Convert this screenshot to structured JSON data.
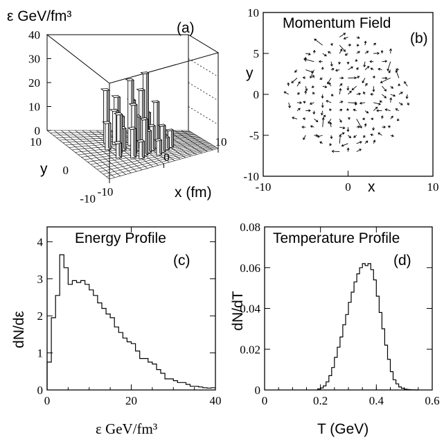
{
  "chart_data": [
    {
      "id": "a",
      "type": "bar3d",
      "panel_label": "(a)",
      "zlabel": "ε GeV/fm³",
      "xlabel": "x (fm)",
      "ylabel": "y",
      "z_ticks": [
        "0",
        "10",
        "20",
        "30",
        "40"
      ],
      "x_ticks": [
        "-10",
        "0",
        "10"
      ],
      "y_ticks": [
        "10",
        "0",
        "-10"
      ],
      "zlim": [
        0,
        40
      ],
      "xlim": [
        -10,
        10
      ],
      "ylim": [
        -10,
        10
      ],
      "bars": [
        {
          "x": -4,
          "y": 4,
          "z": 22
        },
        {
          "x": -3,
          "y": 3,
          "z": 14
        },
        {
          "x": -2,
          "y": 5,
          "z": 18
        },
        {
          "x": -1,
          "y": 2,
          "z": 27
        },
        {
          "x": 0,
          "y": 4,
          "z": 17
        },
        {
          "x": 1,
          "y": 1,
          "z": 30
        },
        {
          "x": 2,
          "y": 3,
          "z": 12
        },
        {
          "x": -5,
          "y": 1,
          "z": 11
        },
        {
          "x": -4,
          "y": -1,
          "z": 16
        },
        {
          "x": -3,
          "y": 0,
          "z": 9
        },
        {
          "x": -2,
          "y": -2,
          "z": 20
        },
        {
          "x": -1,
          "y": -1,
          "z": 14
        },
        {
          "x": 0,
          "y": 0,
          "z": 24
        },
        {
          "x": 1,
          "y": -2,
          "z": 10
        },
        {
          "x": 2,
          "y": -1,
          "z": 19
        },
        {
          "x": 3,
          "y": 0,
          "z": 8
        },
        {
          "x": -3,
          "y": -4,
          "z": 12
        },
        {
          "x": -2,
          "y": -5,
          "z": 7
        },
        {
          "x": -1,
          "y": -4,
          "z": 15
        },
        {
          "x": 0,
          "y": -3,
          "z": 9
        },
        {
          "x": 1,
          "y": -5,
          "z": 6
        },
        {
          "x": 2,
          "y": -4,
          "z": 11
        },
        {
          "x": 3,
          "y": -3,
          "z": 5
        },
        {
          "x": -5,
          "y": -3,
          "z": 6
        },
        {
          "x": 4,
          "y": -2,
          "z": 7
        },
        {
          "x": -1,
          "y": 6,
          "z": 9
        },
        {
          "x": 1,
          "y": 5,
          "z": 8
        }
      ]
    },
    {
      "id": "b",
      "type": "vector_field",
      "title": "Momentum Field",
      "panel_label": "(b)",
      "xlabel": "x",
      "ylabel": "y",
      "xlim": [
        -10,
        10
      ],
      "ylim": [
        -10,
        10
      ],
      "x_ticks": [
        "-10",
        "0",
        "10"
      ],
      "y_ticks": [
        "10",
        "5",
        "0",
        "-5",
        "-10"
      ],
      "field_radius": 7,
      "grid_step": 1
    },
    {
      "id": "c",
      "type": "step",
      "title": "Energy Profile",
      "panel_label": "(c)",
      "xlabel": "ε GeV/fm³",
      "ylabel": "dN/dε",
      "xlim": [
        0,
        40
      ],
      "ylim": [
        0,
        4.4
      ],
      "x_ticks": [
        "0",
        "20",
        "40"
      ],
      "y_ticks": [
        "0",
        "1",
        "2",
        "3",
        "4"
      ],
      "bin_width": 1,
      "x_start": 0,
      "values": [
        0.75,
        1.95,
        2.55,
        3.65,
        3.3,
        2.85,
        2.95,
        2.9,
        2.95,
        2.85,
        2.7,
        2.55,
        2.35,
        2.2,
        2.05,
        1.95,
        1.7,
        1.55,
        1.4,
        1.3,
        1.25,
        1.05,
        0.85,
        0.85,
        0.75,
        0.7,
        0.55,
        0.45,
        0.3,
        0.3,
        0.25,
        0.2,
        0.2,
        0.15,
        0.1,
        0.1,
        0.08,
        0.06,
        0.05,
        0.06
      ]
    },
    {
      "id": "d",
      "type": "step",
      "title": "Temperature Profile",
      "panel_label": "(d)",
      "xlabel": "T  (GeV)",
      "ylabel": "dN/dT",
      "xlim": [
        0,
        0.6
      ],
      "ylim": [
        0,
        0.08
      ],
      "x_ticks": [
        "0",
        "0.2",
        "0.4",
        "0.6"
      ],
      "y_ticks": [
        "0",
        "0.02",
        "0.04",
        "0.06",
        "0.08"
      ],
      "bin_width": 0.01,
      "x_start": 0.19,
      "values": [
        0.0005,
        0.001,
        0.002,
        0.004,
        0.007,
        0.011,
        0.016,
        0.021,
        0.026,
        0.032,
        0.037,
        0.043,
        0.048,
        0.053,
        0.057,
        0.06,
        0.062,
        0.061,
        0.062,
        0.059,
        0.054,
        0.046,
        0.038,
        0.03,
        0.022,
        0.015,
        0.009,
        0.005,
        0.003,
        0.0015,
        0.0008,
        0.0004,
        0.0002,
        0.0001,
        5e-05,
        0.0
      ]
    }
  ]
}
